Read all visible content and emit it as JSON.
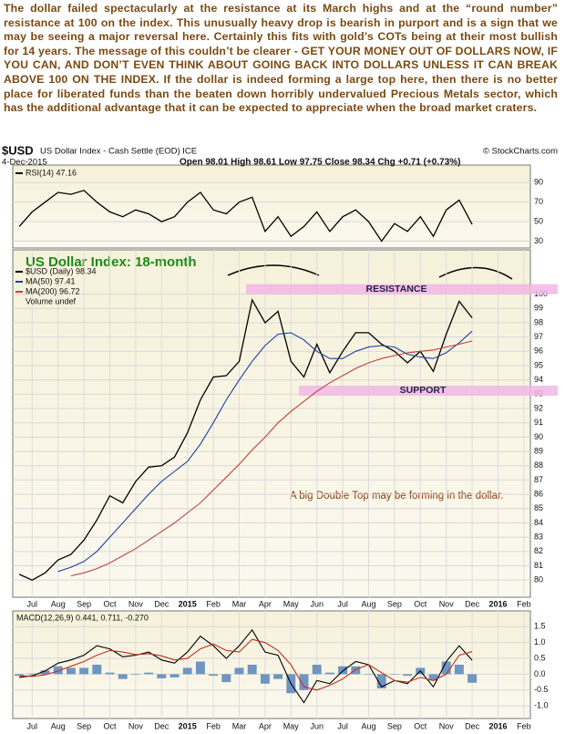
{
  "commentary": "The dollar failed spectacularly at the resistance at its March highs and at the “round number” resistance at 100 on the index. This unusually heavy drop is bearish in purport and is a sign that we may be seeing a major reversal here. Certainly this fits with gold’s COTs being at their most bullish for 14 years. The message of this couldn’t be clearer - GET YOUR MONEY OUT OF DOLLARS NOW, IF YOU CAN, AND DON’T EVEN THINK ABOUT GOING BACK INTO DOLLARS UNLESS IT CAN BREAK ABOVE 100 ON THE INDEX. If the dollar is indeed forming a large top here, then there is no better place for liberated funds than the beaten down horribly undervalued Precious Metals sector, which has the additional advantage that it can be expected to appreciate when the broad market craters.",
  "header": {
    "symbol": "$USD",
    "name": "US Dollar Index - Cash Settle (EOD) ICE",
    "credit": "© StockCharts.com",
    "date": "4-Dec-2015",
    "quote": "Open 98.01 High 98.61 Low 97.75 Close 98.34 Chg +0.71 (+0.73%)"
  },
  "chart_data": [
    {
      "type": "line",
      "series": [
        {
          "name": "RSI(14) 47.16",
          "color": "#000000",
          "values": [
            45,
            60,
            70,
            80,
            78,
            82,
            70,
            60,
            55,
            62,
            58,
            50,
            55,
            70,
            80,
            62,
            58,
            70,
            75,
            40,
            55,
            35,
            45,
            60,
            40,
            55,
            62,
            50,
            30,
            48,
            40,
            55,
            35,
            62,
            72,
            47.16,
            null,
            null,
            null,
            null
          ]
        }
      ],
      "ylim": [
        23,
        108
      ],
      "yticks": [
        30,
        50,
        70,
        90
      ],
      "grid": true
    },
    {
      "type": "line",
      "title": "US Dollar Index: 18-month",
      "annotation": "A big Double Top may be forming in the dollar.",
      "volume_label": "Volume undef",
      "bands": [
        {
          "label": "RESISTANCE",
          "range": [
            100.0,
            100.7
          ]
        },
        {
          "label": "SUPPORT",
          "range": [
            92.9,
            93.6
          ]
        }
      ],
      "categories": [
        null,
        "Jul",
        null,
        "Aug",
        null,
        "Sep",
        null,
        "Oct",
        null,
        "Nov",
        null,
        "Dec",
        null,
        "2015",
        null,
        "Feb",
        null,
        "Mar",
        null,
        "Apr",
        null,
        "May",
        null,
        "Jun",
        null,
        "Jul",
        null,
        "Aug",
        null,
        "Sep",
        null,
        "Oct",
        null,
        "Nov",
        null,
        "Dec",
        null,
        "2016",
        null,
        "Feb"
      ],
      "series": [
        {
          "name": "$USD (Daily) 98.34",
          "color": "#000000",
          "values": [
            80.4,
            80.0,
            80.5,
            81.4,
            81.8,
            82.8,
            84.2,
            85.9,
            85.4,
            86.9,
            87.9,
            88.0,
            88.6,
            90.3,
            92.6,
            94.2,
            94.3,
            95.3,
            99.6,
            98.0,
            98.8,
            95.3,
            94.2,
            96.5,
            94.5,
            96.0,
            97.3,
            97.3,
            96.5,
            96.0,
            95.2,
            96.0,
            94.6,
            97.2,
            99.5,
            98.34,
            null,
            null,
            null,
            null
          ]
        },
        {
          "name": "MA(50) 97.41",
          "color": "#1f3f9f",
          "values": [
            null,
            null,
            null,
            80.6,
            80.9,
            81.3,
            82.0,
            83.0,
            84.0,
            85.0,
            86.0,
            86.9,
            87.6,
            88.3,
            89.5,
            91.0,
            92.6,
            94.0,
            95.3,
            96.4,
            97.2,
            97.3,
            96.8,
            96.0,
            95.5,
            95.5,
            96.0,
            96.3,
            96.4,
            96.3,
            95.8,
            95.6,
            95.5,
            95.9,
            96.6,
            97.41,
            null,
            null,
            null,
            null
          ]
        },
        {
          "name": "MA(200) 96.72",
          "color": "#c04040",
          "values": [
            null,
            null,
            null,
            null,
            80.3,
            80.5,
            80.8,
            81.2,
            81.7,
            82.2,
            82.8,
            83.4,
            84.0,
            84.7,
            85.4,
            86.3,
            87.2,
            88.1,
            89.1,
            90.0,
            91.0,
            91.8,
            92.5,
            93.2,
            93.8,
            94.3,
            94.8,
            95.2,
            95.5,
            95.7,
            95.9,
            96.0,
            96.1,
            96.3,
            96.5,
            96.72,
            null,
            null,
            null,
            null
          ]
        }
      ],
      "ylim": [
        78.8,
        103.1
      ],
      "yticks": [
        80,
        81,
        82,
        83,
        84,
        85,
        86,
        87,
        88,
        89,
        90,
        91,
        92,
        93,
        94,
        95,
        96,
        97,
        98,
        99,
        100
      ],
      "grid": true
    },
    {
      "type": "line",
      "legend": "MACD(12,26,9) 0.441, 0.711, -0.270",
      "categories": [
        null,
        "Jul",
        null,
        "Aug",
        null,
        "Sep",
        null,
        "Oct",
        null,
        "Nov",
        null,
        "Dec",
        null,
        "2015",
        null,
        "Feb",
        null,
        "Mar",
        null,
        "Apr",
        null,
        "May",
        null,
        "Jun",
        null,
        "Jul",
        null,
        "Aug",
        null,
        "Sep",
        null,
        "Oct",
        null,
        "Nov",
        null,
        "Dec",
        null,
        "2016",
        null,
        "Feb"
      ],
      "series": [
        {
          "style": "bar",
          "color": "#6f95c0",
          "values": [
            -0.05,
            0.02,
            0.12,
            0.25,
            0.2,
            0.2,
            0.3,
            0.05,
            -0.15,
            -0.02,
            0.05,
            -0.13,
            -0.1,
            0.2,
            0.4,
            -0.05,
            -0.25,
            0.2,
            0.3,
            -0.3,
            -0.15,
            -0.6,
            -0.5,
            0.3,
            0.05,
            0.25,
            0.25,
            0.0,
            -0.45,
            0.0,
            -0.05,
            0.2,
            -0.2,
            0.4,
            0.3,
            -0.27,
            null,
            null,
            null,
            null
          ]
        },
        {
          "style": "line",
          "color": "#000000",
          "values": [
            -0.1,
            -0.05,
            0.1,
            0.35,
            0.45,
            0.6,
            0.9,
            0.8,
            0.55,
            0.6,
            0.7,
            0.45,
            0.35,
            0.7,
            1.2,
            0.9,
            0.5,
            0.9,
            1.4,
            0.7,
            0.6,
            -0.3,
            -0.9,
            -0.2,
            -0.3,
            0.1,
            0.4,
            0.3,
            -0.4,
            -0.2,
            -0.3,
            0.1,
            -0.4,
            0.4,
            0.9,
            0.441,
            null,
            null,
            null,
            null
          ]
        },
        {
          "style": "line",
          "color": "#c03020",
          "values": [
            -0.05,
            -0.07,
            -0.02,
            0.1,
            0.25,
            0.4,
            0.6,
            0.75,
            0.7,
            0.62,
            0.65,
            0.58,
            0.45,
            0.5,
            0.8,
            0.95,
            0.75,
            0.7,
            1.1,
            1.0,
            0.75,
            0.3,
            -0.4,
            -0.5,
            -0.35,
            -0.15,
            0.15,
            0.3,
            0.05,
            -0.2,
            -0.25,
            -0.1,
            -0.2,
            0.0,
            0.6,
            0.711,
            null,
            null,
            null,
            null
          ]
        }
      ],
      "ylim": [
        -1.4,
        2.0
      ],
      "yticks": [
        {
          "value": -1,
          "label": "-1.0"
        },
        -0.5,
        {
          "value": 0,
          "label": "0.0"
        },
        0.5,
        {
          "value": 1,
          "label": "1.0"
        },
        1.5
      ],
      "grid": true
    }
  ]
}
